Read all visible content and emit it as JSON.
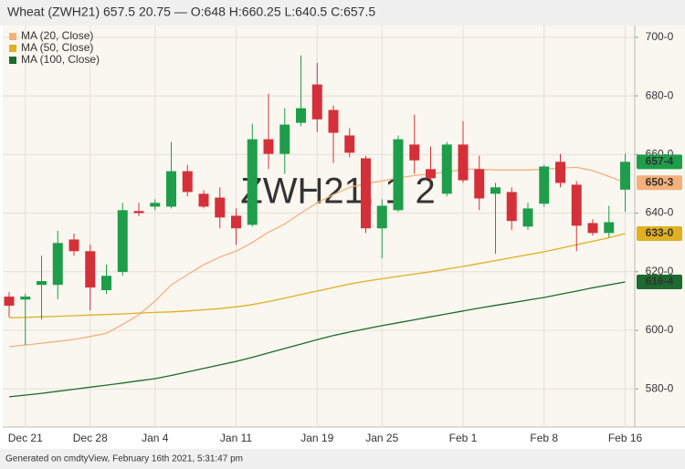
{
  "chart_data": {
    "type": "candlestick",
    "title": "Wheat (ZWH21) 657.5 20.75 — O:648 H:660.25 L:640.5 C:657.5",
    "watermark": "ZWH21, 1 2",
    "footer": "Generated on cmdtyView, February 16th 2021, 5:31:47 pm",
    "categories": [
      null,
      "Dec 21",
      null,
      null,
      null,
      "Dec 28",
      null,
      null,
      null,
      "Jan 4",
      null,
      null,
      null,
      null,
      "Jan 11",
      null,
      null,
      null,
      null,
      "Jan 19",
      null,
      null,
      null,
      "Jan 25",
      null,
      null,
      null,
      null,
      "Feb 1",
      null,
      null,
      null,
      null,
      "Feb 8",
      null,
      null,
      null,
      null,
      "Feb 16"
    ],
    "open": [
      611.5,
      610.5,
      615.5,
      615.5,
      631,
      627,
      613.7,
      619.9,
      640.7,
      642.2,
      642.2,
      654.3,
      646.6,
      645.3,
      639.1,
      636,
      665.2,
      660.2,
      670.8,
      683.9,
      675.2,
      666.5,
      658.7,
      634.8,
      641,
      663.4,
      655,
      646.6,
      663.4,
      655,
      646.6,
      647.2,
      635.4,
      643.2,
      657.5,
      649.7,
      636.6,
      633.2,
      648
    ],
    "high": [
      613,
      612.5,
      625.5,
      634,
      633,
      629.2,
      622.4,
      643.5,
      643.5,
      644.7,
      664.3,
      656.5,
      647.8,
      648.8,
      641.6,
      670.5,
      680.7,
      675.8,
      693.8,
      691.3,
      676.7,
      669,
      659.6,
      644.7,
      666.5,
      673.6,
      662.7,
      664.3,
      671.4,
      659.6,
      650.3,
      648.8,
      643.5,
      656.5,
      660.2,
      650.9,
      637.9,
      642.5,
      660.25
    ],
    "low": [
      604.5,
      595,
      603.7,
      610.6,
      625.5,
      606.8,
      612.4,
      618.6,
      639,
      641,
      641.6,
      645.7,
      641.6,
      634.8,
      629.2,
      635.4,
      655,
      653.4,
      669.6,
      667.7,
      657.1,
      659,
      633.2,
      624.5,
      640.4,
      653.4,
      650.9,
      645.7,
      650.3,
      641,
      626.1,
      634.2,
      634.2,
      642.2,
      648.8,
      627,
      632.3,
      631.7,
      640.5
    ],
    "close": [
      608.4,
      611.5,
      616.8,
      629.8,
      627,
      614.6,
      618.6,
      641,
      640,
      643.5,
      654.3,
      647.2,
      642.2,
      638.5,
      634.8,
      665.2,
      660.2,
      670.2,
      675.8,
      672,
      667.4,
      660.6,
      634.8,
      642.5,
      665.2,
      658,
      651.9,
      663.4,
      651.2,
      645,
      648.8,
      637.3,
      641.6,
      655.9,
      650.3,
      635.7,
      633.2,
      636.9,
      657.5
    ],
    "close_last_label": "657-4",
    "up_color": "#1e9e4a",
    "down_color": "#d5303a",
    "series": [
      {
        "name": "MA (20, Close)",
        "color": "#f4b07a",
        "last_label": "650-3",
        "values": [
          594.4,
          595,
          595.6,
          596.2,
          596.9,
          597.9,
          599,
          602,
          605.3,
          610,
          615.5,
          619,
          622.4,
          625,
          627,
          630,
          633.5,
          636.3,
          640,
          643.5,
          646.3,
          648.8,
          650,
          651,
          652,
          652.8,
          653.4,
          654,
          655,
          655,
          654.7,
          654.7,
          654.7,
          655,
          655.4,
          655.6,
          654.5,
          652.5,
          650.375
        ]
      },
      {
        "name": "MA (50, Close)",
        "color": "#e0b020",
        "last_label": "633-0",
        "values": [
          604.3,
          604.4,
          604.6,
          604.8,
          605,
          605.2,
          605.4,
          605.6,
          605.9,
          606.1,
          606.3,
          606.6,
          607,
          607.4,
          608,
          608.8,
          609.8,
          611,
          612.2,
          613.4,
          614.6,
          615.8,
          616.8,
          617.6,
          618.4,
          619.2,
          620,
          620.9,
          621.8,
          622.8,
          623.8,
          624.8,
          625.8,
          626.8,
          628,
          629.2,
          630.4,
          631.6,
          633
        ]
      },
      {
        "name": "MA (100, Close)",
        "color": "#1d6b2e",
        "last_label": "616-4",
        "values": [
          577.3,
          577.9,
          578.5,
          579.2,
          579.9,
          580.6,
          581.3,
          582,
          582.8,
          583.5,
          584.6,
          585.8,
          587,
          588.2,
          589.4,
          590.8,
          592.3,
          593.8,
          595.3,
          596.8,
          598.2,
          599.4,
          600.5,
          601.6,
          602.6,
          603.6,
          604.6,
          605.6,
          606.6,
          607.6,
          608.5,
          609.4,
          610.3,
          611.2,
          612.3,
          613.4,
          614.5,
          615.5,
          616.5
        ]
      }
    ],
    "ylim": [
      567,
      704
    ],
    "yticks": [
      {
        "value": 580,
        "label": "580-0"
      },
      {
        "value": 600,
        "label": "600-0"
      },
      {
        "value": 620,
        "label": "620-0"
      },
      {
        "value": 640,
        "label": "640-0"
      },
      {
        "value": 660,
        "label": "660-0"
      },
      {
        "value": 680,
        "label": "680-0"
      },
      {
        "value": 700,
        "label": "700-0"
      }
    ],
    "grid": true,
    "legend": "upper left"
  }
}
